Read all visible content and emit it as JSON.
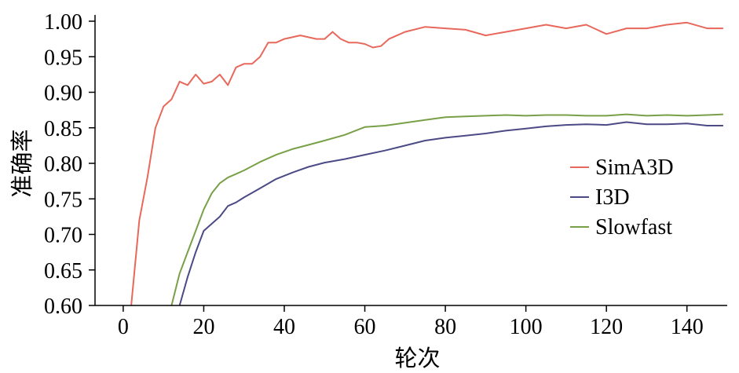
{
  "chart_data": {
    "type": "line",
    "title": "",
    "xlabel": "轮次",
    "ylabel": "准确率",
    "xlim": [
      -7,
      150
    ],
    "ylim": [
      0.6,
      1.0
    ],
    "xticks": [
      0,
      20,
      40,
      60,
      80,
      100,
      120,
      140
    ],
    "yticks": [
      0.6,
      0.65,
      0.7,
      0.75,
      0.8,
      0.85,
      0.9,
      0.95,
      1.0
    ],
    "xtick_labels": [
      "0",
      "20",
      "40",
      "60",
      "80",
      "100",
      "120",
      "140"
    ],
    "ytick_labels": [
      "0.60",
      "0.65",
      "0.70",
      "0.75",
      "0.80",
      "0.85",
      "0.90",
      "0.95",
      "1.00"
    ],
    "grid": false,
    "legend": "center-right",
    "series": [
      {
        "name": "SimA3D",
        "color": "#e8685c",
        "x": [
          2,
          4,
          6,
          8,
          10,
          12,
          14,
          16,
          18,
          20,
          22,
          24,
          26,
          28,
          30,
          32,
          34,
          36,
          38,
          40,
          44,
          48,
          50,
          52,
          54,
          56,
          58,
          60,
          62,
          64,
          66,
          68,
          70,
          75,
          80,
          85,
          90,
          95,
          100,
          105,
          110,
          115,
          120,
          125,
          130,
          135,
          140,
          145,
          149
        ],
        "y": [
          0.6,
          0.72,
          0.78,
          0.85,
          0.88,
          0.89,
          0.915,
          0.91,
          0.925,
          0.912,
          0.915,
          0.925,
          0.91,
          0.935,
          0.94,
          0.94,
          0.95,
          0.97,
          0.97,
          0.975,
          0.98,
          0.975,
          0.975,
          0.985,
          0.975,
          0.97,
          0.97,
          0.968,
          0.963,
          0.965,
          0.975,
          0.98,
          0.985,
          0.992,
          0.99,
          0.988,
          0.98,
          0.985,
          0.99,
          0.995,
          0.99,
          0.995,
          0.982,
          0.99,
          0.99,
          0.995,
          0.998,
          0.99,
          0.99
        ]
      },
      {
        "name": "I3D",
        "color": "#4b4a86",
        "x": [
          14,
          16,
          18,
          20,
          22,
          24,
          26,
          28,
          30,
          34,
          38,
          42,
          46,
          50,
          55,
          60,
          65,
          70,
          75,
          80,
          85,
          90,
          95,
          100,
          105,
          110,
          115,
          120,
          125,
          130,
          135,
          140,
          145,
          149
        ],
        "y": [
          0.6,
          0.64,
          0.675,
          0.705,
          0.715,
          0.725,
          0.74,
          0.745,
          0.752,
          0.765,
          0.778,
          0.787,
          0.795,
          0.801,
          0.806,
          0.812,
          0.818,
          0.825,
          0.832,
          0.836,
          0.839,
          0.842,
          0.846,
          0.849,
          0.852,
          0.854,
          0.855,
          0.854,
          0.858,
          0.855,
          0.855,
          0.856,
          0.853,
          0.853
        ]
      },
      {
        "name": "Slowfast",
        "color": "#78a048",
        "x": [
          12,
          14,
          16,
          18,
          20,
          22,
          24,
          26,
          28,
          30,
          34,
          38,
          42,
          46,
          50,
          55,
          60,
          65,
          70,
          75,
          80,
          85,
          90,
          95,
          100,
          105,
          110,
          115,
          120,
          125,
          130,
          135,
          140,
          145,
          149
        ],
        "y": [
          0.6,
          0.645,
          0.675,
          0.705,
          0.735,
          0.758,
          0.772,
          0.78,
          0.785,
          0.79,
          0.802,
          0.812,
          0.82,
          0.826,
          0.832,
          0.84,
          0.851,
          0.853,
          0.857,
          0.861,
          0.865,
          0.866,
          0.867,
          0.868,
          0.867,
          0.868,
          0.868,
          0.867,
          0.867,
          0.869,
          0.867,
          0.868,
          0.867,
          0.868,
          0.869
        ]
      }
    ]
  }
}
